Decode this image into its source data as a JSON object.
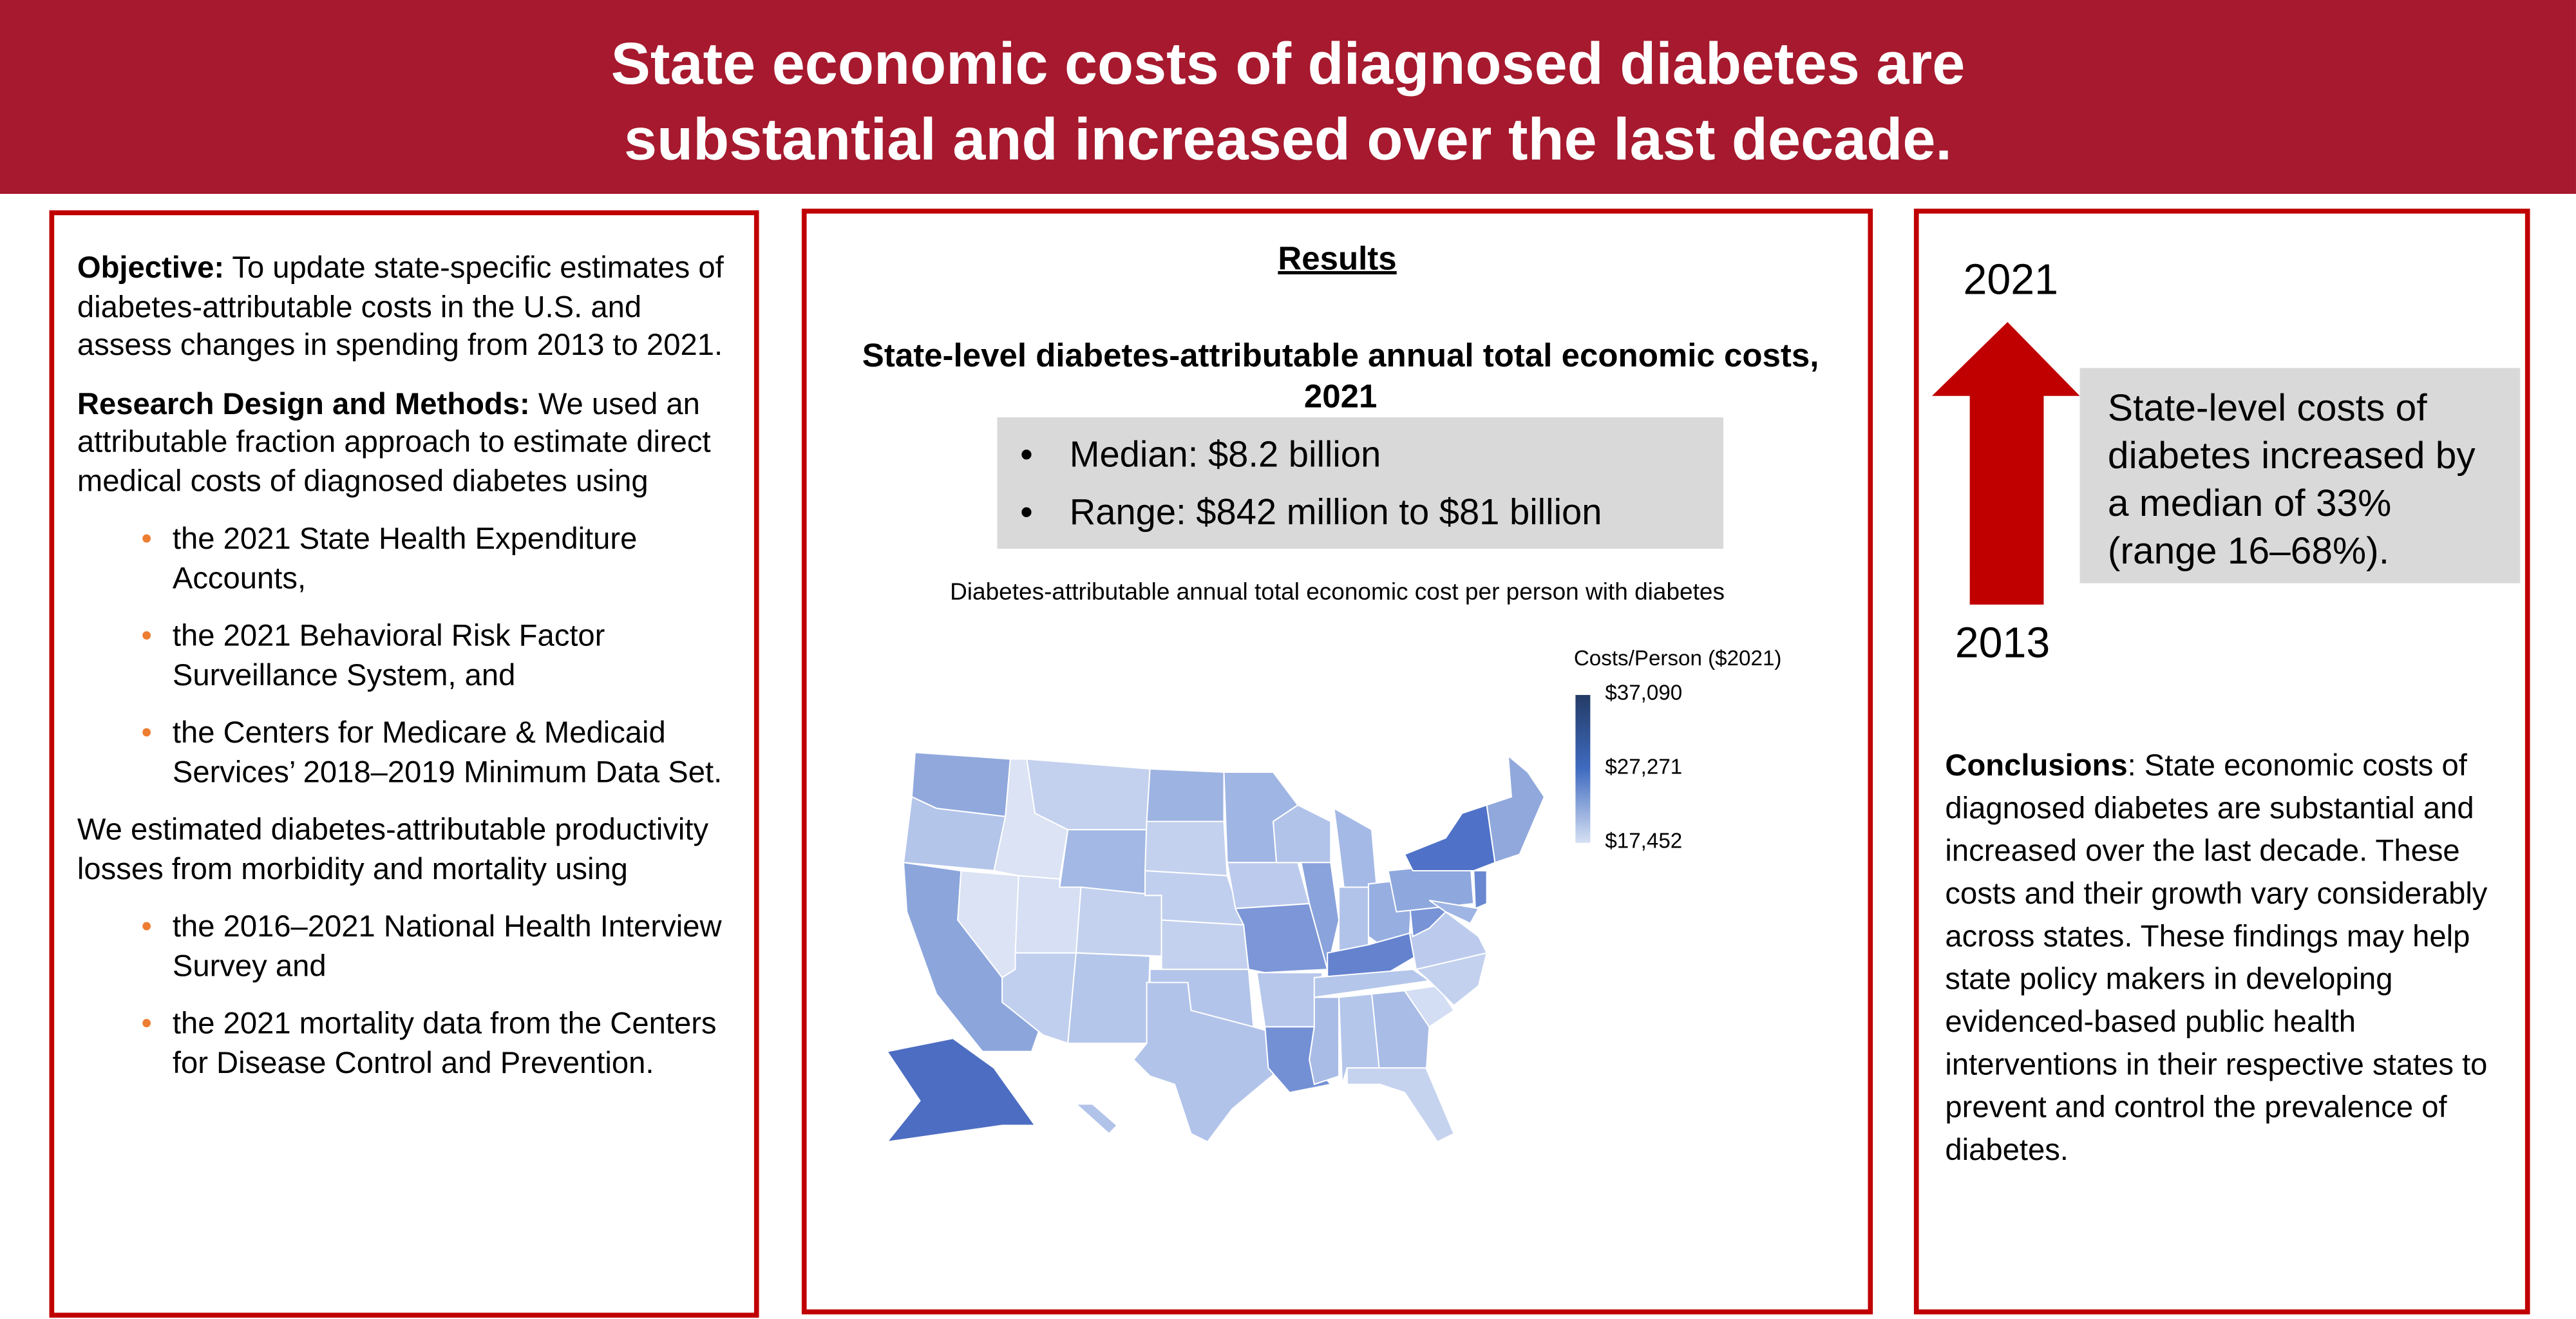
{
  "header": {
    "title_line1": "State economic costs of diagnosed diabetes are",
    "title_line2": "substantial and increased over the last decade."
  },
  "left": {
    "objective_label": "Objective:",
    "objective_text": " To update state-specific estimates of diabetes-attributable costs in the U.S. and assess changes in spending from 2013 to 2021.",
    "methods_label": "Research Design and Methods:",
    "methods_text": " We used an attributable fraction approach to estimate direct medical costs of diagnosed diabetes using",
    "bullet_char": "•",
    "direct_sources": [
      "the 2021 State Health Expenditure Accounts,",
      "the 2021 Behavioral Risk Factor Surveillance System, and",
      "the Centers for Medicare & Medicaid Services’ 2018–2019 Minimum Data Set."
    ],
    "productivity_text": "We estimated diabetes-attributable productivity losses from morbidity and mortality using",
    "productivity_sources": [
      "the 2016–2021 National Health Interview Survey and",
      "the 2021 mortality data from the Centers for Disease Control and Prevention."
    ]
  },
  "middle": {
    "heading": "Results",
    "subtitle": "State-level diabetes-attributable annual total economic costs, 2021",
    "stats": [
      "Median: $8.2 billion",
      "Range: $842 million to $81 billion"
    ],
    "stat_bullet": "•",
    "map_caption": "Diabetes-attributable annual total economic cost per person with diabetes"
  },
  "chart_data": {
    "type": "choropleth",
    "title": "Diabetes-attributable annual total economic cost per person with diabetes",
    "legend": {
      "title": "Costs/Person ($2021)",
      "ticks": [
        "$37,090",
        "$27,271",
        "$17,452"
      ],
      "min": 17452,
      "max": 37090,
      "colors": [
        "#d6e0f3",
        "#3f6bc0",
        "#243b66"
      ]
    },
    "state_colors": {
      "WA": "#90a8dc",
      "OR": "#b4c5ea",
      "CA": "#8ca6dc",
      "NV": "#dbe3f4",
      "ID": "#dbe3f4",
      "MT": "#c3d1ee",
      "WY": "#a3b8e4",
      "UT": "#d6dff3",
      "AZ": "#c0cfee",
      "CO": "#c3d1ee",
      "NM": "#b4c6ea",
      "ND": "#9db3e2",
      "SD": "#c3d1ee",
      "NE": "#c0cfee",
      "KS": "#c3d1ee",
      "OK": "#b3c4ea",
      "TX": "#b1c3e9",
      "MN": "#9fb5e3",
      "IA": "#bccbed",
      "MO": "#7c96d7",
      "AR": "#b7c7eb",
      "LA": "#7490d5",
      "WI": "#b1c3e9",
      "IL": "#8aa3dc",
      "MI": "#a4b9e5",
      "IN": "#b1c3e9",
      "OH": "#97aee1",
      "KY": "#6582cf",
      "TN": "#b4c6ea",
      "MS": "#a9bce6",
      "AL": "#b4c6ea",
      "GA": "#a9bce6",
      "FL": "#c6d3ef",
      "SC": "#d3ddf3",
      "NC": "#c3d1ee",
      "VA": "#bccbed",
      "WV": "#7893d6",
      "PA": "#8ea8dd",
      "NY": "#4f72c8",
      "NE_REGION": "#90a8dc",
      "NJ": "#6a88d1",
      "MD": "#9fb5e3",
      "AK": "#4c6dc2",
      "HI": "#b1c3e9"
    }
  },
  "right": {
    "year_end": "2021",
    "year_start": "2013",
    "arrow_color": "#C00000",
    "increase_text": "State-level costs of diabetes increased by a median of 33% (range 16–68%).",
    "conclusions_label": "Conclusions",
    "conclusions_text": ": State economic costs of diagnosed diabetes are substantial and increased over the last decade. These costs and their growth vary considerably across states. These findings may help state policy makers in developing evidenced-based public health interventions in their respective states to prevent and control the prevalence of diabetes."
  }
}
